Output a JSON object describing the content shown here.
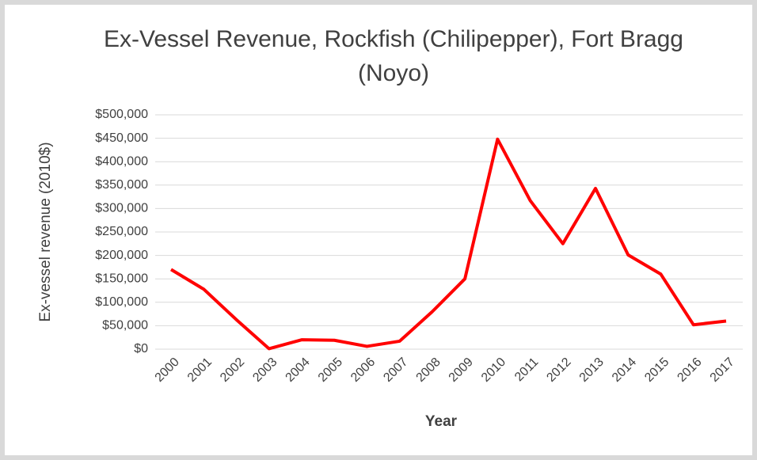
{
  "chart_data": {
    "type": "line",
    "title": "Ex-Vessel Revenue, Rockfish (Chilipepper), Fort Bragg (Noyo)",
    "x_label": "Year",
    "y_label": "Ex-vessel revenue (2010$)",
    "categories": [
      "2000",
      "2001",
      "2002",
      "2003",
      "2004",
      "2005",
      "2006",
      "2007",
      "2008",
      "2009",
      "2010",
      "2011",
      "2012",
      "2013",
      "2014",
      "2015",
      "2016",
      "2017"
    ],
    "series": [
      {
        "name": "Ex-vessel revenue",
        "color": "#ff0000",
        "values": [
          170000,
          128000,
          63000,
          1000,
          20000,
          19000,
          6000,
          17000,
          80000,
          150000,
          448000,
          317000,
          225000,
          343000,
          201000,
          160000,
          52000,
          60000
        ]
      }
    ],
    "ylim": [
      0,
      500000
    ],
    "yticks": [
      {
        "value": 0,
        "label": "$0"
      },
      {
        "value": 50000,
        "label": "$50,000"
      },
      {
        "value": 100000,
        "label": "$100,000"
      },
      {
        "value": 150000,
        "label": "$150,000"
      },
      {
        "value": 200000,
        "label": "$200,000"
      },
      {
        "value": 250000,
        "label": "$250,000"
      },
      {
        "value": 300000,
        "label": "$300,000"
      },
      {
        "value": 350000,
        "label": "$350,000"
      },
      {
        "value": 400000,
        "label": "$400,000"
      },
      {
        "value": 450000,
        "label": "$450,000"
      },
      {
        "value": 500000,
        "label": "$500,000"
      }
    ],
    "grid": true
  }
}
